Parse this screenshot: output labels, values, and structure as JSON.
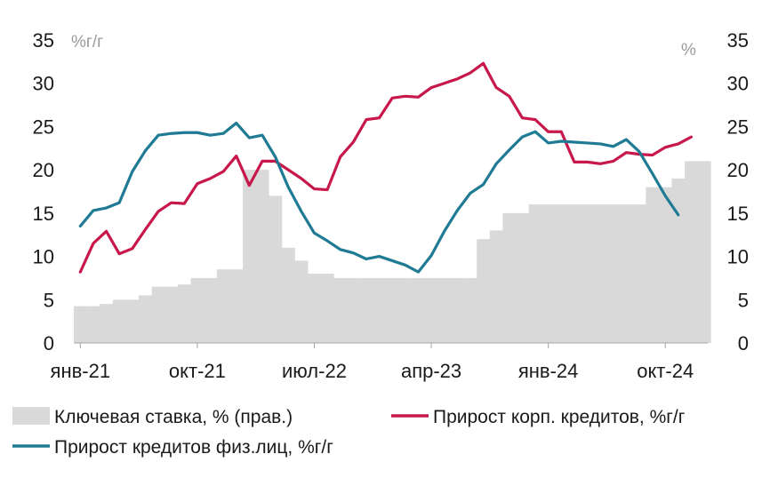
{
  "chart_data": {
    "type": "line",
    "left_unit": "%г/г",
    "right_unit": "%",
    "x_tick_labels": [
      "янв-21",
      "окт-21",
      "июл-22",
      "апр-23",
      "янв-24",
      "окт-24"
    ],
    "x_tick_indices": [
      0,
      9,
      18,
      27,
      36,
      45
    ],
    "yleft": {
      "lim": [
        0,
        35
      ],
      "ticks": [
        "0",
        "5",
        "10",
        "15",
        "20",
        "25",
        "30",
        "35"
      ]
    },
    "yright": {
      "lim": [
        0,
        35
      ],
      "ticks": [
        "0",
        "5",
        "10",
        "15",
        "20",
        "25",
        "30",
        "35"
      ]
    },
    "colors": {
      "key_rate": "#d9d9d9",
      "corp": "#c8174a",
      "retail": "#1f7a94"
    },
    "series": [
      {
        "name": "Ключевая ставка, % (прав.)",
        "kind": "bar",
        "axis": "right",
        "color": "#d9d9d9",
        "values": [
          4.25,
          4.25,
          4.5,
          5.0,
          5.0,
          5.5,
          6.5,
          6.5,
          6.75,
          7.5,
          7.5,
          8.5,
          8.5,
          20.0,
          20.0,
          17.0,
          11.0,
          9.5,
          8.0,
          8.0,
          7.5,
          7.5,
          7.5,
          7.5,
          7.5,
          7.5,
          7.5,
          7.5,
          7.5,
          7.5,
          7.5,
          12.0,
          13.0,
          15.0,
          15.0,
          16.0,
          16.0,
          16.0,
          16.0,
          16.0,
          16.0,
          16.0,
          16.0,
          16.0,
          18.0,
          18.0,
          19.0,
          21.0,
          21.0
        ]
      },
      {
        "name": "Прирост корп. кредитов, %г/г",
        "kind": "line",
        "axis": "left",
        "color": "#c8174a",
        "values": [
          8.2,
          11.5,
          12.9,
          10.3,
          10.9,
          13.1,
          15.2,
          16.2,
          16.1,
          18.4,
          19.0,
          19.8,
          21.6,
          18.2,
          21.0,
          21.0,
          20.0,
          19.0,
          17.8,
          17.7,
          21.5,
          23.2,
          25.8,
          26.0,
          28.3,
          28.5,
          28.4,
          29.5,
          30.0,
          30.5,
          31.2,
          32.3,
          29.5,
          28.5,
          26.0,
          25.8,
          24.4,
          24.4,
          20.9,
          20.9,
          20.7,
          21.0,
          22.0,
          21.8,
          21.7,
          22.6,
          23.0,
          23.8
        ]
      },
      {
        "name": "Прирост кредитов физ.лиц, %г/г",
        "kind": "line",
        "axis": "left",
        "color": "#1f7a94",
        "values": [
          13.5,
          15.3,
          15.6,
          16.2,
          19.8,
          22.2,
          24.0,
          24.2,
          24.3,
          24.3,
          24.0,
          24.2,
          25.4,
          23.7,
          24.0,
          21.5,
          18.0,
          15.2,
          12.7,
          11.8,
          10.8,
          10.4,
          9.7,
          10.0,
          9.5,
          9.0,
          8.2,
          10.1,
          12.9,
          15.3,
          17.3,
          18.3,
          20.7,
          22.3,
          23.8,
          24.4,
          23.1,
          23.3,
          23.2,
          23.1,
          23.0,
          22.7,
          23.5,
          22.1,
          19.6,
          17.0,
          14.8
        ]
      }
    ]
  }
}
